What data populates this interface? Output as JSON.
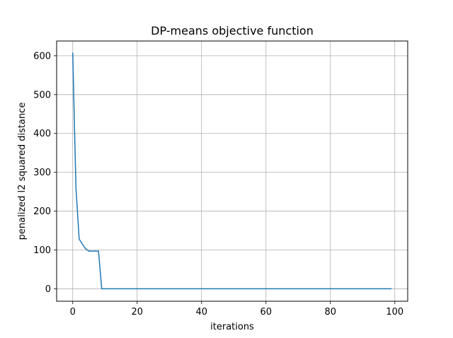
{
  "chart_data": {
    "type": "line",
    "title": "DP-means objective function",
    "xlabel": "iterations",
    "ylabel": "penalized l2 squared distance",
    "xlim": [
      -5,
      104
    ],
    "ylim": [
      -32,
      638
    ],
    "xticks": [
      0,
      20,
      40,
      60,
      80,
      100
    ],
    "yticks": [
      0,
      100,
      200,
      300,
      400,
      500,
      600
    ],
    "grid": true,
    "series": [
      {
        "color": "#1f77b4",
        "x": [
          0,
          1,
          2,
          3,
          4,
          5,
          6,
          7,
          8,
          9,
          10,
          20,
          30,
          40,
          50,
          60,
          70,
          80,
          90,
          99
        ],
        "y": [
          608,
          260,
          128,
          115,
          103,
          97,
          97,
          97,
          97,
          0,
          0,
          0,
          0,
          0,
          0,
          0,
          0,
          0,
          0,
          0
        ]
      }
    ]
  }
}
